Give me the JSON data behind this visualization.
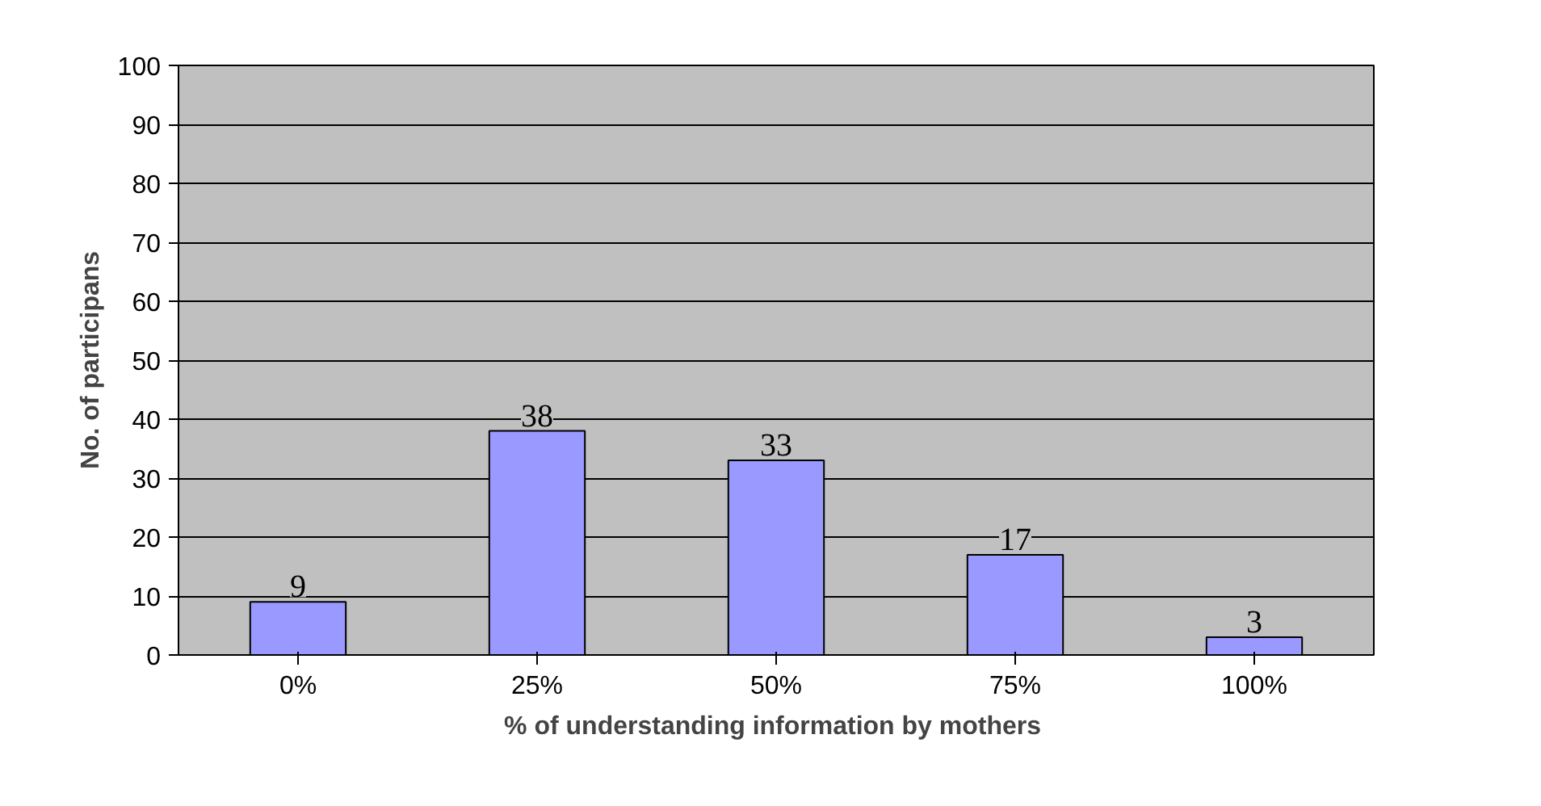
{
  "chart_data": {
    "type": "bar",
    "categories": [
      "0%",
      "25%",
      "50%",
      "75%",
      "100%"
    ],
    "values": [
      9,
      38,
      33,
      17,
      3
    ],
    "color": "#9999ff",
    "xlabel": "% of understanding  information by mothers",
    "ylabel": "No. of participans",
    "ylim": [
      0,
      100
    ],
    "yticks": [
      0,
      10,
      20,
      30,
      40,
      50,
      60,
      70,
      80,
      90,
      100
    ],
    "grid": "y",
    "data_labels": true
  }
}
